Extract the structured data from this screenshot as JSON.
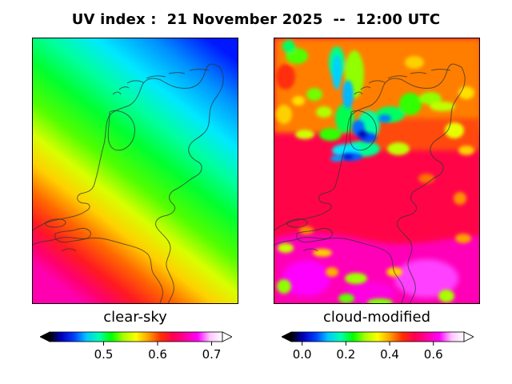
{
  "title": "UV index :  21 November 2025  --  12:00 UTC",
  "panels": [
    {
      "label": "clear-sky",
      "colorbar": {
        "range": [
          0.4,
          0.72
        ],
        "ticks": [
          "0.5",
          "0.6",
          "0.7"
        ],
        "tick_values": [
          0.5,
          0.6,
          0.7
        ],
        "extend": "both"
      }
    },
    {
      "label": "cloud-modified",
      "colorbar": {
        "range": [
          -0.05,
          0.74
        ],
        "ticks": [
          "0.0",
          "0.2",
          "0.4",
          "0.6"
        ],
        "tick_values": [
          0.0,
          0.2,
          0.4,
          0.6
        ],
        "extend": "both"
      }
    }
  ],
  "colormap": [
    "#000000",
    "#0000c0",
    "#0040ff",
    "#00c8ff",
    "#00ffb0",
    "#00ff00",
    "#a8ff00",
    "#ffff00",
    "#ffa000",
    "#ff3000",
    "#ff0050",
    "#ff00a0",
    "#ff00ff",
    "#ffc8ff",
    "#ffffff"
  ],
  "map_region": "Netherlands"
}
